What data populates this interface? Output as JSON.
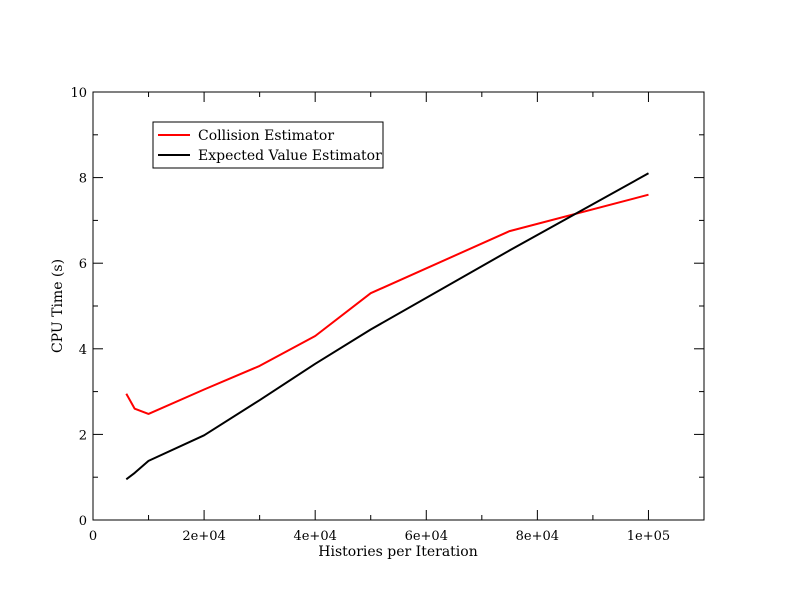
{
  "chart_data": {
    "type": "line",
    "title": "",
    "xlabel": "Histories per Iteration",
    "ylabel": "CPU Time (s)",
    "xlim": [
      0,
      110000
    ],
    "ylim": [
      0,
      10
    ],
    "x_ticks": [
      0,
      20000,
      40000,
      60000,
      80000,
      100000
    ],
    "x_tick_labels": [
      "0",
      "2e+04",
      "4e+04",
      "6e+04",
      "8e+04",
      "1e+05"
    ],
    "y_ticks": [
      0,
      2,
      4,
      6,
      8,
      10
    ],
    "y_tick_labels": [
      "0",
      "2",
      "4",
      "6",
      "8",
      "10"
    ],
    "grid": false,
    "legend_position": "top-left",
    "series": [
      {
        "name": "Collision Estimator",
        "color": "#ff0000",
        "x": [
          6000,
          7500,
          10000,
          20000,
          30000,
          40000,
          50000,
          75000,
          100000
        ],
        "y": [
          2.95,
          2.6,
          2.48,
          3.05,
          3.6,
          4.3,
          5.3,
          6.75,
          7.6
        ]
      },
      {
        "name": "Expected Value Estimator",
        "color": "#000000",
        "x": [
          6000,
          7500,
          10000,
          20000,
          30000,
          40000,
          50000,
          75000,
          100000
        ],
        "y": [
          0.95,
          1.1,
          1.38,
          1.98,
          2.8,
          3.65,
          4.45,
          6.3,
          8.1
        ]
      }
    ]
  }
}
